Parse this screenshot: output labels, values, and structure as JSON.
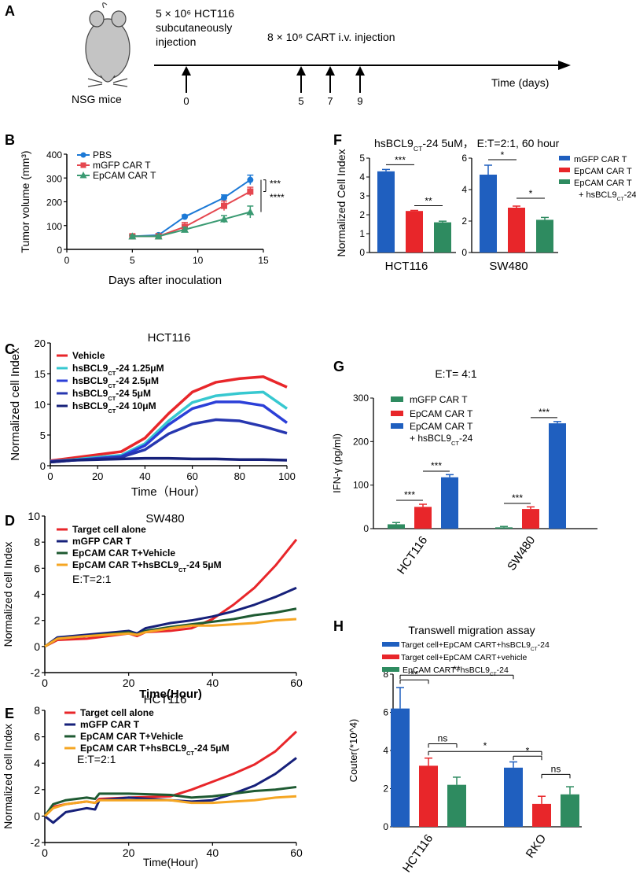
{
  "colors": {
    "blue": "#1f5fbf",
    "red": "#e8262a",
    "green": "#2e8b60",
    "teal": "#3cc9c9",
    "cyan": "#37c8d0",
    "dblue": "#2b3fd8",
    "navy": "#16207a",
    "darkgreen": "#1e5a32",
    "orange": "#f5a623",
    "pbs": "#1c79d6",
    "mgfp": "#e5474f",
    "epcam": "#3a9a72"
  },
  "panelA": {
    "label": "A",
    "injection1_line1": "5 × 10⁶ HCT116",
    "injection1_line2": "subcutaneously",
    "injection1_line3": "injection",
    "injection2": "8 × 10⁶ CART i.v. injection",
    "time_label": "Time (days)",
    "mouse_label": "NSG mice",
    "days": [
      "0",
      "5",
      "7",
      "9"
    ]
  },
  "chart_data": [
    {
      "panel": "B",
      "type": "line",
      "title": "",
      "xlabel": "Days after inoculation",
      "ylabel": "Tumor volume (mm³)",
      "xlim": [
        0,
        15
      ],
      "ylim": [
        0,
        400
      ],
      "xticks": [
        0,
        5,
        10,
        15
      ],
      "yticks": [
        0,
        100,
        200,
        300,
        400
      ],
      "x": [
        5,
        7,
        9,
        12,
        14
      ],
      "series": [
        {
          "name": "PBS",
          "values": [
            55,
            60,
            137,
            217,
            292
          ],
          "errors": [
            5,
            6,
            8,
            12,
            20
          ]
        },
        {
          "name": "mGFP CAR T",
          "values": [
            55,
            55,
            95,
            183,
            243
          ],
          "errors": [
            5,
            5,
            18,
            20,
            18
          ]
        },
        {
          "name": "EpCAM CAR T",
          "values": [
            55,
            55,
            83,
            127,
            157
          ],
          "errors": [
            5,
            5,
            10,
            15,
            25
          ]
        }
      ],
      "significance": [
        "***",
        "****"
      ]
    },
    {
      "panel": "C",
      "type": "line",
      "title": "HCT116",
      "xlabel": "Time（Hour）",
      "ylabel": "Normalized cell Index",
      "xlim": [
        0,
        100
      ],
      "ylim": [
        0,
        20
      ],
      "xticks": [
        0,
        20,
        40,
        60,
        80,
        100
      ],
      "yticks": [
        0,
        5,
        10,
        15,
        20
      ],
      "x": [
        0,
        10,
        20,
        30,
        40,
        50,
        60,
        70,
        80,
        90,
        100
      ],
      "series": [
        {
          "name": "Vehicle",
          "values": [
            0.8,
            1.3,
            1.8,
            2.3,
            4.5,
            8.5,
            12,
            13.6,
            14.2,
            14.5,
            12.8
          ]
        },
        {
          "name": "hsBCL9CT-24 1.25μM",
          "values": [
            0.7,
            1.0,
            1.4,
            1.7,
            3.6,
            7.3,
            10.3,
            11.4,
            11.8,
            12.0,
            9.3
          ]
        },
        {
          "name": "hsBCL9CT-24 2.5μM",
          "values": [
            0.7,
            0.9,
            1.2,
            1.5,
            3.3,
            6.7,
            9.3,
            10.4,
            10.4,
            9.8,
            7.0
          ]
        },
        {
          "name": "hsBCL9CT-24 5μM",
          "values": [
            0.6,
            0.9,
            1.1,
            1.4,
            2.6,
            5.2,
            6.8,
            7.5,
            7.3,
            6.4,
            5.3
          ]
        },
        {
          "name": "hsBCL9CT-24 10μM",
          "values": [
            0.6,
            0.9,
            1.0,
            1.1,
            1.2,
            1.2,
            1.1,
            1.1,
            1.0,
            1.0,
            0.9
          ]
        }
      ]
    },
    {
      "panel": "D",
      "type": "line",
      "title": "SW480",
      "xlabel": "Time(Hour)",
      "ylabel": "Normalized cell Index",
      "xlim": [
        0,
        60
      ],
      "ylim": [
        -2,
        10
      ],
      "xticks": [
        0,
        20,
        40,
        60
      ],
      "yticks": [
        -2,
        0,
        2,
        4,
        6,
        8,
        10
      ],
      "annotation": "E:T=2:1",
      "x": [
        0,
        3,
        10,
        20,
        22,
        24,
        30,
        35,
        40,
        45,
        50,
        55,
        60
      ],
      "series": [
        {
          "name": "Target cell alone",
          "values": [
            0,
            0.5,
            0.6,
            1.0,
            0.8,
            1.1,
            1.2,
            1.4,
            2.1,
            3.2,
            4.5,
            6.2,
            8.2
          ]
        },
        {
          "name": "mGFP  CAR T",
          "values": [
            0,
            0.7,
            0.9,
            1.2,
            1.0,
            1.4,
            1.8,
            2.0,
            2.3,
            2.7,
            3.2,
            3.8,
            4.5
          ]
        },
        {
          "name": "EpCAM CAR T+Vehicle",
          "values": [
            0,
            0.6,
            0.8,
            1.1,
            0.9,
            1.2,
            1.5,
            1.7,
            1.9,
            2.1,
            2.4,
            2.6,
            2.9
          ]
        },
        {
          "name": "EpCAM CAR T+hsBCL9CT-24 5μM",
          "values": [
            0,
            0.6,
            0.8,
            1.0,
            0.9,
            1.1,
            1.4,
            1.6,
            1.6,
            1.7,
            1.8,
            2.0,
            2.1
          ]
        }
      ]
    },
    {
      "panel": "E",
      "type": "line",
      "title": "HCT116",
      "xlabel": "Time(Hour)",
      "ylabel": "Normalized cell Index",
      "xlim": [
        0,
        60
      ],
      "ylim": [
        -2,
        8
      ],
      "xticks": [
        0,
        20,
        40,
        60
      ],
      "yticks": [
        -2,
        0,
        2,
        4,
        6,
        8
      ],
      "annotation": "E:T=2:1",
      "x": [
        0,
        2,
        5,
        10,
        12,
        13,
        20,
        30,
        35,
        40,
        45,
        50,
        55,
        60
      ],
      "series": [
        {
          "name": "Target cell alone",
          "values": [
            0,
            0.7,
            0.9,
            1.1,
            1.0,
            1.3,
            1.4,
            1.5,
            2.0,
            2.6,
            3.2,
            3.9,
            4.9,
            6.4
          ]
        },
        {
          "name": "mGFP CAR T",
          "values": [
            0,
            -0.5,
            0.3,
            0.6,
            0.5,
            1.2,
            1.4,
            1.2,
            1.1,
            1.2,
            1.7,
            2.3,
            3.2,
            4.4
          ]
        },
        {
          "name": "EpCAM CAR T+Vehicle",
          "values": [
            0,
            0.9,
            1.2,
            1.4,
            1.3,
            1.7,
            1.7,
            1.6,
            1.4,
            1.5,
            1.7,
            1.9,
            2.0,
            2.2
          ]
        },
        {
          "name": "EpCAM CAR T+hsBCL9CT-24 5μM",
          "values": [
            0,
            0.6,
            0.9,
            1.1,
            1.0,
            1.2,
            1.2,
            1.2,
            1.0,
            1.0,
            1.1,
            1.2,
            1.4,
            1.5
          ]
        }
      ]
    },
    {
      "panel": "F",
      "type": "bar",
      "title": "hsBCL9CT-24  5uM， E:T=2:1, 60 hour",
      "ylabel": "Normalized Cell Index",
      "series_names": [
        "mGFP CAR T",
        "EpCAM CAR T",
        "EpCAM CAR T + hsBCL9CT-24"
      ],
      "subplots": [
        {
          "category": "HCT116",
          "ylim": [
            0,
            5
          ],
          "yticks": [
            0,
            1,
            2,
            3,
            4,
            5
          ],
          "values": [
            4.3,
            2.2,
            1.6
          ],
          "errors": [
            0.1,
            0.03,
            0.06
          ],
          "significance": [
            "***",
            "**"
          ]
        },
        {
          "category": "SW480",
          "ylim": [
            0,
            6
          ],
          "yticks": [
            0,
            2,
            4,
            6
          ],
          "values": [
            4.95,
            2.85,
            2.08
          ],
          "errors": [
            0.6,
            0.1,
            0.15
          ],
          "significance": [
            "*",
            "*"
          ]
        }
      ]
    },
    {
      "panel": "G",
      "type": "bar",
      "title": "E:T= 4:1",
      "ylabel": "IFN-γ (pg/ml)",
      "ylim": [
        0,
        300
      ],
      "yticks": [
        0,
        100,
        200,
        300
      ],
      "categories": [
        "HCT116",
        "SW480"
      ],
      "series": [
        {
          "name": "mGFP CAR T",
          "values": [
            10,
            3
          ],
          "errors": [
            4,
            2
          ]
        },
        {
          "name": "EpCAM CAR T",
          "values": [
            50,
            45
          ],
          "errors": [
            6,
            5
          ]
        },
        {
          "name": "EpCAM CAR T + hsBCL9CT-24",
          "values": [
            118,
            242
          ],
          "errors": [
            6,
            4
          ]
        }
      ],
      "significance": [
        "***",
        "***",
        "***",
        "***"
      ]
    },
    {
      "panel": "H",
      "type": "bar",
      "title": "Transwell migration assay",
      "ylabel": "Couter(*10^4)",
      "ylim": [
        0,
        8
      ],
      "yticks": [
        0,
        2,
        4,
        6,
        8
      ],
      "categories": [
        "HCT116",
        "RKO"
      ],
      "series": [
        {
          "name": "Target cell+EpCAM CART+hsBCL9CT-24",
          "values": [
            6.2,
            3.1
          ],
          "errors": [
            1.1,
            0.3
          ]
        },
        {
          "name": "Target cell+EpCAM CART+vehicle",
          "values": [
            3.2,
            1.2
          ],
          "errors": [
            0.4,
            0.4
          ]
        },
        {
          "name": "EpCAM CART+hsBCL9CT-24",
          "values": [
            2.2,
            1.7
          ],
          "errors": [
            0.4,
            0.4
          ]
        }
      ],
      "significance": [
        "**",
        "**",
        "ns",
        "*",
        "*",
        "ns"
      ]
    }
  ]
}
